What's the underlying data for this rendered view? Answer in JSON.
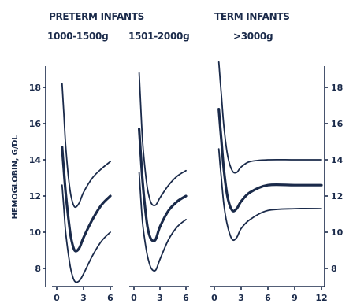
{
  "header": {
    "preterm_title": "PRETERM INFANTS",
    "term_title": "TERM INFANTS",
    "group1": "1000-1500g",
    "group2": "1501-2000g",
    "group3": ">3000g"
  },
  "chart_data": {
    "type": "line",
    "title": "",
    "ylabel": "HEMOGLOBIN, G/DL",
    "ylim": [
      7,
      19
    ],
    "yticks": [
      8,
      10,
      12,
      14,
      16,
      18
    ],
    "grid": false,
    "legend": "none",
    "panels": [
      {
        "name": "1000-1500g",
        "xlim": [
          0,
          6
        ],
        "xticks": [
          0,
          3,
          6
        ],
        "series": [
          {
            "role": "upper",
            "x": [
              0.6,
              0.8,
              1.0,
              1.3,
              1.6,
              2.0,
              2.5,
              3.0,
              4.0,
              5.0,
              6.0
            ],
            "y": [
              18.2,
              16.5,
              14.8,
              13.1,
              12.0,
              11.4,
              11.6,
              12.2,
              13.0,
              13.5,
              13.9
            ]
          },
          {
            "role": "mean",
            "x": [
              0.6,
              0.8,
              1.0,
              1.3,
              1.6,
              2.0,
              2.5,
              3.0,
              4.0,
              5.0,
              6.0
            ],
            "y": [
              14.7,
              13.4,
              12.2,
              10.8,
              9.7,
              9.0,
              9.1,
              9.7,
              10.7,
              11.5,
              12.0
            ]
          },
          {
            "role": "lower",
            "x": [
              0.6,
              0.8,
              1.0,
              1.3,
              1.6,
              2.0,
              2.5,
              3.0,
              4.0,
              5.0,
              6.0
            ],
            "y": [
              12.6,
              11.3,
              10.0,
              8.8,
              7.9,
              7.3,
              7.3,
              7.7,
              8.7,
              9.5,
              10.0
            ]
          }
        ]
      },
      {
        "name": "1501-2000g",
        "xlim": [
          0,
          6
        ],
        "xticks": [
          0,
          3,
          6
        ],
        "series": [
          {
            "role": "upper",
            "x": [
              0.6,
              0.8,
              1.0,
              1.3,
              1.6,
              2.0,
              2.5,
              3.0,
              4.0,
              5.0,
              6.0
            ],
            "y": [
              18.8,
              16.8,
              15.0,
              13.4,
              12.3,
              11.6,
              11.5,
              11.9,
              12.6,
              13.1,
              13.4
            ]
          },
          {
            "role": "mean",
            "x": [
              0.6,
              0.8,
              1.0,
              1.3,
              1.6,
              2.0,
              2.5,
              3.0,
              4.0,
              5.0,
              6.0
            ],
            "y": [
              15.7,
              14.2,
              12.8,
              11.3,
              10.2,
              9.6,
              9.6,
              10.3,
              11.2,
              11.7,
              12.0
            ]
          },
          {
            "role": "lower",
            "x": [
              0.6,
              0.8,
              1.0,
              1.3,
              1.6,
              2.0,
              2.5,
              3.0,
              4.0,
              5.0,
              6.0
            ],
            "y": [
              13.3,
              11.8,
              10.5,
              9.4,
              8.6,
              8.0,
              7.9,
              8.5,
              9.6,
              10.3,
              10.7
            ]
          }
        ]
      },
      {
        "name": ">3000g",
        "xlim": [
          0,
          12
        ],
        "xticks": [
          0,
          3,
          6,
          9,
          12
        ],
        "series": [
          {
            "role": "upper",
            "x": [
              0.5,
              0.8,
              1.1,
              1.5,
              2.0,
              2.5,
              3.0,
              4.0,
              6.0,
              9.0,
              12.0
            ],
            "y": [
              19.4,
              17.5,
              15.7,
              14.2,
              13.4,
              13.3,
              13.6,
              13.9,
              14.0,
              14.0,
              14.0
            ]
          },
          {
            "role": "mean",
            "x": [
              0.5,
              0.8,
              1.1,
              1.5,
              2.0,
              2.5,
              3.0,
              4.0,
              6.0,
              9.0,
              12.0
            ],
            "y": [
              16.8,
              15.0,
              13.3,
              11.9,
              11.2,
              11.3,
              11.7,
              12.2,
              12.6,
              12.6,
              12.6
            ]
          },
          {
            "role": "lower",
            "x": [
              0.5,
              0.8,
              1.1,
              1.5,
              2.0,
              2.5,
              3.0,
              4.0,
              6.0,
              9.0,
              12.0
            ],
            "y": [
              14.6,
              12.9,
              11.4,
              10.3,
              9.6,
              9.7,
              10.2,
              10.7,
              11.2,
              11.3,
              11.3
            ]
          }
        ]
      }
    ]
  }
}
